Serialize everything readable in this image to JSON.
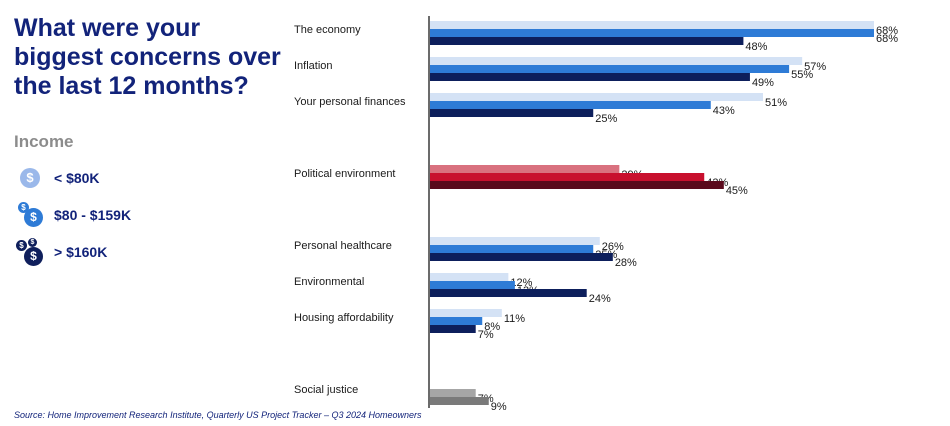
{
  "title": "What were your biggest concerns over the last 12 months?",
  "legend": {
    "heading": "Income",
    "items": [
      {
        "label": "< $80K",
        "icon": "single-dollar-coin-icon",
        "color": "#9ab8ea"
      },
      {
        "label": "$80 - $159K",
        "icon": "double-dollar-coin-icon",
        "color": "#2e7bd6"
      },
      {
        "label": "> $160K",
        "icon": "triple-dollar-coin-icon",
        "color": "#0f1f5c"
      }
    ]
  },
  "source": "Source: Home Improvement Research Institute, Quarterly US Project Tracker – Q3 2024 Homeowners",
  "chart_data": {
    "type": "bar",
    "orientation": "horizontal",
    "xlim": [
      0,
      68
    ],
    "series": [
      {
        "name": "< $80K",
        "color": "#d4e2f5"
      },
      {
        "name": "$80 - $159K",
        "color": "#2e7bd6"
      },
      {
        "name": "> $160K",
        "color": "#0d1f5c"
      }
    ],
    "categories": [
      {
        "label": "The economy",
        "values": [
          68,
          68,
          48
        ],
        "colors": [
          "#d4e2f5",
          "#2e7bd6",
          "#0d1f5c"
        ]
      },
      {
        "label": "Inflation",
        "values": [
          57,
          55,
          49
        ],
        "colors": [
          "#d4e2f5",
          "#2e7bd6",
          "#0d1f5c"
        ]
      },
      {
        "label": "Your personal finances",
        "values": [
          51,
          43,
          25
        ],
        "colors": [
          "#d4e2f5",
          "#2e7bd6",
          "#0d1f5c"
        ]
      },
      {
        "label": "Political environment",
        "values": [
          29,
          42,
          45
        ],
        "colors": [
          "#d9717f",
          "#c8102e",
          "#5a0a1c"
        ]
      },
      {
        "label": "Personal healthcare",
        "values": [
          26,
          25,
          28
        ],
        "colors": [
          "#d4e2f5",
          "#2e7bd6",
          "#0d1f5c"
        ]
      },
      {
        "label": "Environmental",
        "values": [
          12,
          13,
          24
        ],
        "colors": [
          "#d4e2f5",
          "#2e7bd6",
          "#0d1f5c"
        ]
      },
      {
        "label": "Housing affordability",
        "values": [
          11,
          8,
          7
        ],
        "colors": [
          "#d4e2f5",
          "#2e7bd6",
          "#0d1f5c"
        ]
      },
      {
        "label": "Social justice",
        "values": [
          null,
          7,
          9
        ],
        "colors": [
          "#c9c9c9",
          "#a6a6a6",
          "#7a7a7a"
        ]
      }
    ],
    "value_suffix": "%"
  }
}
